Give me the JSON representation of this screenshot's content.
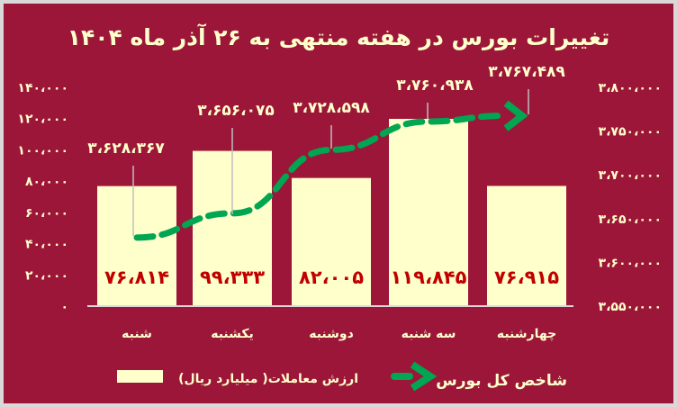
{
  "colors": {
    "background": "#9C1639",
    "bar": "#FFFFCC",
    "bar_label": "#C00000",
    "line": "#00A651",
    "text": "#FFFFCC",
    "baseline": "#d9d9d9",
    "leader": "#bfbfbf"
  },
  "chart_data": {
    "type": "bar+line",
    "title": "تغییرات بورس در هفته منتهی به ۲۶ آذر ماه ۱۴۰۴",
    "categories": [
      "شنبه",
      "یکشنبه",
      "دوشنبه",
      "سه شنبه",
      "چهارشنبه"
    ],
    "legend_placement": "bottom",
    "grid": false,
    "series": [
      {
        "name": "ارزش معاملات( میلیارد ریال)",
        "type": "bar",
        "axis": "left",
        "values": [
          76814,
          99333,
          82005,
          119845,
          76915
        ],
        "labels": [
          "۷۶،۸۱۴",
          "۹۹،۳۳۳",
          "۸۲،۰۰۵",
          "۱۱۹،۸۴۵",
          "۷۶،۹۱۵"
        ]
      },
      {
        "name": "شاخص کل بورس",
        "type": "line",
        "style": "dashed-arrow",
        "axis": "right",
        "values": [
          3628367,
          3656075,
          3728598,
          3760938,
          3767489
        ],
        "labels": [
          "۳،۶۲۸،۳۶۷",
          "۳،۶۵۶،۰۷۵",
          "۳،۷۲۸،۵۹۸",
          "۳،۷۶۰،۹۳۸",
          "۳،۷۶۷،۴۸۹"
        ]
      }
    ],
    "y_left": {
      "range": [
        0,
        140000
      ],
      "ticks": [
        0,
        20000,
        40000,
        60000,
        80000,
        100000,
        120000,
        140000
      ],
      "tick_labels": [
        "۰",
        "۲۰،۰۰۰",
        "۴۰،۰۰۰",
        "۶۰،۰۰۰",
        "۸۰،۰۰۰",
        "۱۰۰،۰۰۰",
        "۱۲۰،۰۰۰",
        "۱۴۰،۰۰۰"
      ]
    },
    "y_right": {
      "range": [
        3550000,
        3800000
      ],
      "ticks": [
        3550000,
        3600000,
        3650000,
        3700000,
        3750000,
        3800000
      ],
      "tick_labels": [
        "۳،۵۵۰،۰۰۰",
        "۳،۶۰۰،۰۰۰",
        "۳،۶۵۰،۰۰۰",
        "۳،۷۰۰،۰۰۰",
        "۳،۷۵۰،۰۰۰",
        "۳،۸۰۰،۰۰۰"
      ]
    }
  }
}
